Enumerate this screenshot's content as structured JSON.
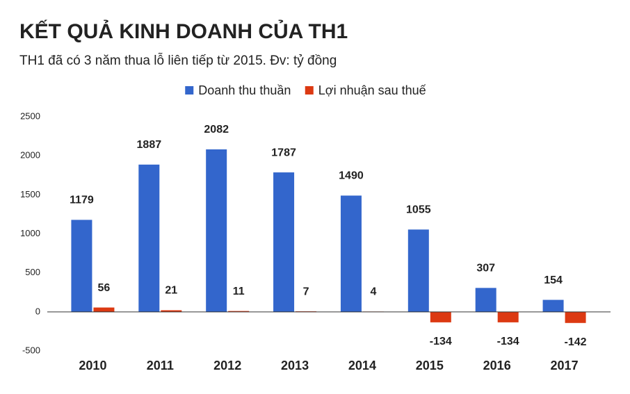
{
  "chart_data": {
    "type": "bar",
    "title": "KẾT QUẢ KINH DOANH CỦA TH1",
    "subtitle": "TH1 đã có 3 năm thua lỗ liên tiếp từ 2015. Đv: tỷ đồng",
    "categories": [
      "2010",
      "2011",
      "2012",
      "2013",
      "2014",
      "2015",
      "2016",
      "2017"
    ],
    "series": [
      {
        "name": "Doanh thu thuần",
        "color": "#3366cc",
        "values": [
          1179,
          1887,
          2082,
          1787,
          1490,
          1055,
          307,
          154
        ]
      },
      {
        "name": "Lợi nhuận sau thuế",
        "color": "#dc3912",
        "values": [
          56,
          21,
          11,
          7,
          4,
          -134,
          -134,
          -142
        ]
      }
    ],
    "ylim": [
      -500,
      2500
    ],
    "yticks": [
      -500,
      0,
      500,
      1000,
      1500,
      2000,
      2500
    ],
    "grid": false,
    "legend": "top"
  }
}
